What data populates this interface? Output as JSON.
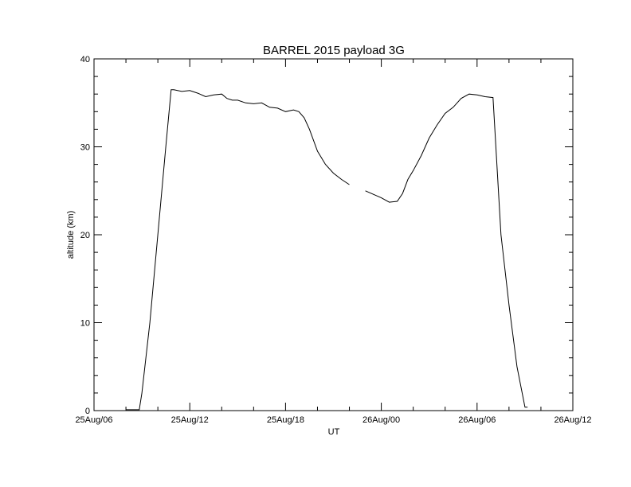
{
  "chart_data": {
    "type": "line",
    "title": "BARREL 2015 payload 3G",
    "xlabel": "UT",
    "ylabel": "altitude (km)",
    "x_tick_labels": [
      "25Aug/06",
      "25Aug/12",
      "25Aug/18",
      "26Aug/00",
      "26Aug/06",
      "26Aug/12"
    ],
    "y_tick_labels": [
      "0",
      "10",
      "20",
      "30",
      "40"
    ],
    "xlim": [
      "2015-08-25 06:00",
      "2015-08-26 12:00"
    ],
    "ylim": [
      0,
      40
    ],
    "grid": false,
    "series": [
      {
        "x": [
          "2015-08-25 08:00",
          "2015-08-25 08:50",
          "2015-08-25 09:00",
          "2015-08-25 09:30",
          "2015-08-25 10:00",
          "2015-08-25 10:30",
          "2015-08-25 10:50",
          "2015-08-25 11:00",
          "2015-08-25 11:30",
          "2015-08-25 12:00",
          "2015-08-25 12:30",
          "2015-08-25 13:00",
          "2015-08-25 13:30",
          "2015-08-25 14:00",
          "2015-08-25 14:20",
          "2015-08-25 14:40",
          "2015-08-25 15:00",
          "2015-08-25 15:30",
          "2015-08-25 16:00",
          "2015-08-25 16:30",
          "2015-08-25 17:00",
          "2015-08-25 17:30",
          "2015-08-25 18:00",
          "2015-08-25 18:30",
          "2015-08-25 18:50",
          "2015-08-25 19:10",
          "2015-08-25 19:30",
          "2015-08-25 20:00",
          "2015-08-25 20:30",
          "2015-08-25 21:00",
          "2015-08-25 21:30",
          "2015-08-25 22:00",
          "2015-08-25 22:30",
          "2015-08-25 22:50",
          "2015-08-25 23:00",
          "2015-08-25 23:30",
          "2015-08-26 00:00",
          "2015-08-26 00:30",
          "2015-08-26 01:00",
          "2015-08-26 01:20",
          "2015-08-26 01:40",
          "2015-08-26 02:00",
          "2015-08-26 02:30",
          "2015-08-26 03:00",
          "2015-08-26 03:30",
          "2015-08-26 04:00",
          "2015-08-26 04:30",
          "2015-08-26 05:00",
          "2015-08-26 05:30",
          "2015-08-26 06:00",
          "2015-08-26 06:30",
          "2015-08-26 07:00",
          "2015-08-26 07:30",
          "2015-08-26 08:00",
          "2015-08-26 08:30",
          "2015-08-26 09:00",
          "2015-08-26 09:10",
          "2015-08-26 09:20",
          "2015-08-26 09:30",
          "2015-08-26 09:40",
          "2015-08-26 09:50",
          "2015-08-26 10:00"
        ],
        "y": [
          0.1,
          0.1,
          2,
          10,
          20,
          30,
          36.5,
          36.5,
          36.3,
          36.4,
          36.1,
          35.7,
          35.9,
          36.0,
          35.5,
          35.3,
          35.3,
          35.0,
          34.9,
          35.0,
          34.5,
          34.4,
          34.0,
          34.2,
          34.0,
          33.3,
          32.0,
          29.5,
          28.0,
          27.0,
          26.3,
          25.7,
          null,
          null,
          25.0,
          24.6,
          24.2,
          23.7,
          23.8,
          24.7,
          26.3,
          27.3,
          29.0,
          31.0,
          32.5,
          33.8,
          34.5,
          35.5,
          36.0,
          35.9,
          35.7,
          35.6,
          20,
          12,
          5,
          0.4,
          0.4,
          null,
          null,
          null,
          null,
          null
        ],
        "style": "solid-with-gaps"
      }
    ]
  }
}
